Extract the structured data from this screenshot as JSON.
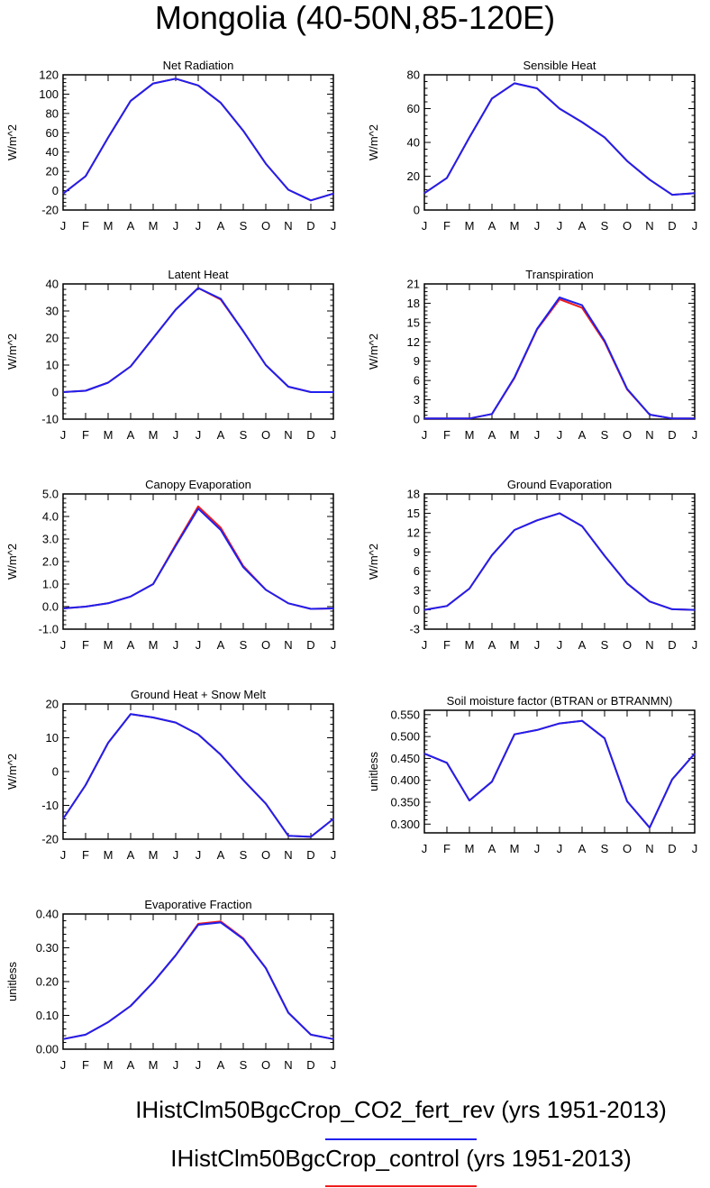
{
  "title": "Mongolia (40-50N,85-120E)",
  "months": [
    "J",
    "F",
    "M",
    "A",
    "M",
    "J",
    "J",
    "A",
    "S",
    "O",
    "N",
    "D",
    "J"
  ],
  "colors": {
    "rev": "#2020ee",
    "control": "#ee1c1c"
  },
  "chart_data": [
    {
      "type": "line",
      "title": "Net Radiation",
      "ylabel": "W/m^2",
      "ylim": [
        -20,
        120
      ],
      "yticks": [
        -20,
        0,
        20,
        40,
        60,
        80,
        100,
        120
      ],
      "yticklabels": [
        "-20",
        "0",
        "20",
        "40",
        "60",
        "80",
        "100",
        "120"
      ],
      "series": [
        {
          "values": [
            -3,
            15,
            55,
            93,
            111,
            116,
            109,
            91,
            62,
            28,
            1,
            -10,
            -3
          ]
        },
        {
          "values": [
            -3,
            15,
            55,
            93,
            111,
            116,
            109,
            91,
            62,
            28,
            1,
            -10,
            -3
          ]
        }
      ]
    },
    {
      "type": "line",
      "title": "Sensible Heat",
      "ylabel": "W/m^2",
      "ylim": [
        0,
        80
      ],
      "yticks": [
        0,
        20,
        40,
        60,
        80
      ],
      "yticklabels": [
        "0",
        "20",
        "40",
        "60",
        "80"
      ],
      "series": [
        {
          "values": [
            10,
            19,
            43,
            66,
            75,
            72,
            60,
            52,
            43,
            29,
            18,
            9,
            10
          ]
        },
        {
          "values": [
            10,
            19,
            43,
            66,
            75,
            72,
            60,
            52,
            43,
            29,
            18,
            9,
            10
          ]
        }
      ]
    },
    {
      "type": "line",
      "title": "Latent Heat",
      "ylabel": "W/m^2",
      "ylim": [
        -10,
        40
      ],
      "yticks": [
        -10,
        0,
        10,
        20,
        30,
        40
      ],
      "yticklabels": [
        "-10",
        "0",
        "10",
        "20",
        "30",
        "40"
      ],
      "series": [
        {
          "values": [
            0,
            0.5,
            3.5,
            9.5,
            20,
            30.5,
            38.5,
            34.5,
            22.5,
            10,
            2,
            0,
            0
          ]
        },
        {
          "values": [
            0,
            0.5,
            3.5,
            9.5,
            20,
            30.5,
            38.5,
            34.2,
            22.5,
            10,
            2,
            0,
            0
          ]
        }
      ]
    },
    {
      "type": "line",
      "title": "Transpiration",
      "ylabel": "W/m^2",
      "ylim": [
        0,
        21
      ],
      "yticks": [
        0,
        3,
        6,
        9,
        12,
        15,
        18,
        21
      ],
      "yticklabels": [
        "0",
        "3",
        "6",
        "9",
        "12",
        "15",
        "18",
        "21"
      ],
      "series": [
        {
          "values": [
            0.1,
            0.1,
            0.1,
            0.8,
            6.5,
            14,
            18.9,
            17.7,
            12.2,
            4.7,
            0.7,
            0.1,
            0.1
          ]
        },
        {
          "values": [
            0.1,
            0.1,
            0.1,
            0.8,
            6.4,
            13.9,
            18.6,
            17.3,
            12.0,
            4.6,
            0.7,
            0.1,
            0.1
          ]
        }
      ]
    },
    {
      "type": "line",
      "title": "Canopy Evaporation",
      "ylabel": "W/m^2",
      "ylim": [
        -1,
        5
      ],
      "yticks": [
        -1,
        0,
        1,
        2,
        3,
        4,
        5
      ],
      "yticklabels": [
        "-1.0",
        "0.0",
        "1.0",
        "2.0",
        "3.0",
        "4.0",
        "5.0"
      ],
      "series": [
        {
          "values": [
            -0.08,
            0,
            0.15,
            0.45,
            1.0,
            2.7,
            4.35,
            3.4,
            1.75,
            0.75,
            0.15,
            -0.1,
            -0.08
          ]
        },
        {
          "values": [
            -0.08,
            0,
            0.15,
            0.45,
            1.0,
            2.75,
            4.45,
            3.5,
            1.8,
            0.75,
            0.15,
            -0.1,
            -0.08
          ]
        }
      ]
    },
    {
      "type": "line",
      "title": "Ground Evaporation",
      "ylabel": "W/m^2",
      "ylim": [
        -3,
        18
      ],
      "yticks": [
        -3,
        0,
        3,
        6,
        9,
        12,
        15,
        18
      ],
      "yticklabels": [
        "-3",
        "0",
        "3",
        "6",
        "9",
        "12",
        "15",
        "18"
      ],
      "series": [
        {
          "values": [
            0,
            0.6,
            3.3,
            8.5,
            12.4,
            13.9,
            15.0,
            13.0,
            8.4,
            4.1,
            1.3,
            0.1,
            0
          ]
        },
        {
          "values": [
            0,
            0.6,
            3.3,
            8.5,
            12.4,
            13.9,
            15.0,
            13.0,
            8.4,
            4.1,
            1.3,
            0.1,
            0
          ]
        }
      ]
    },
    {
      "type": "line",
      "title": "Ground Heat + Snow Melt",
      "ylabel": "W/m^2",
      "ylim": [
        -20,
        20
      ],
      "yticks": [
        -20,
        -10,
        0,
        10,
        20
      ],
      "yticklabels": [
        "-20",
        "-10",
        "0",
        "10",
        "20"
      ],
      "series": [
        {
          "values": [
            -14,
            -4,
            8.5,
            17,
            16,
            14.5,
            11,
            5,
            -2.5,
            -9.5,
            -19,
            -19.3,
            -14
          ]
        },
        {
          "values": [
            -14,
            -4,
            8.5,
            17,
            16,
            14.5,
            11,
            5,
            -2.5,
            -9.5,
            -19,
            -19.3,
            -14
          ]
        }
      ]
    },
    {
      "type": "line",
      "title": "Soil moisture factor (BTRAN or BTRANMN)",
      "ylabel": "unitless",
      "ylim": [
        0.28,
        0.56
      ],
      "yticks": [
        0.3,
        0.35,
        0.4,
        0.45,
        0.5,
        0.55
      ],
      "yticklabels": [
        "0.300",
        "0.350",
        "0.400",
        "0.450",
        "0.500",
        "0.550"
      ],
      "series": [
        {
          "values": [
            0.461,
            0.44,
            0.354,
            0.397,
            0.505,
            0.515,
            0.53,
            0.536,
            0.496,
            0.352,
            0.292,
            0.402,
            0.461
          ]
        },
        {
          "values": [
            0.461,
            0.44,
            0.354,
            0.397,
            0.505,
            0.515,
            0.53,
            0.536,
            0.496,
            0.352,
            0.292,
            0.402,
            0.461
          ]
        }
      ]
    },
    {
      "type": "line",
      "title": "Evaporative Fraction",
      "ylabel": "unitless",
      "ylim": [
        0,
        0.4
      ],
      "yticks": [
        0,
        0.1,
        0.2,
        0.3,
        0.4
      ],
      "yticklabels": [
        "0.00",
        "0.10",
        "0.20",
        "0.30",
        "0.40"
      ],
      "series": [
        {
          "values": [
            0.03,
            0.043,
            0.08,
            0.128,
            0.198,
            0.278,
            0.368,
            0.375,
            0.326,
            0.24,
            0.108,
            0.043,
            0.03
          ]
        },
        {
          "values": [
            0.03,
            0.043,
            0.08,
            0.128,
            0.198,
            0.278,
            0.371,
            0.378,
            0.328,
            0.24,
            0.108,
            0.043,
            0.03
          ]
        }
      ]
    }
  ],
  "legend": [
    {
      "label": "IHistClm50BgcCrop_CO2_fert_rev (yrs 1951-2013)",
      "color": "#2020ee"
    },
    {
      "label": "IHistClm50BgcCrop_control (yrs 1951-2013)",
      "color": "#ee1c1c"
    }
  ]
}
